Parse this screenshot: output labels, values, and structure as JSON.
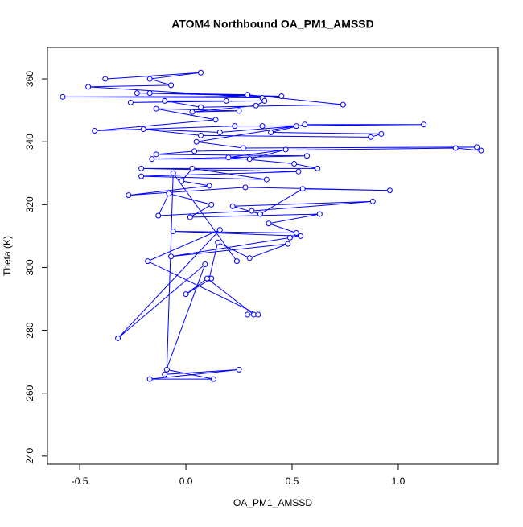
{
  "chart_data": {
    "type": "line",
    "markers": true,
    "title": "ATOM4 Northbound OA_PM1_AMSSD",
    "x_label": "OA_PM1_AMSSD",
    "y_label": "Theta (K)",
    "color": "#0000ff",
    "x": [
      -0.38,
      0.07,
      -0.17,
      -0.07,
      -0.46,
      0.36,
      -0.58,
      0.45,
      -0.23,
      -0.17,
      0.29,
      0.74,
      0.07,
      -0.1,
      0.19,
      -0.26,
      0.37,
      0.33,
      0.03,
      0.25,
      -0.14,
      0.14,
      -0.43,
      0.23,
      0.36,
      1.12,
      0.56,
      0.4,
      0.92,
      0.87,
      0.07,
      -0.2,
      0.16,
      0.52,
      0.05,
      0.27,
      1.37,
      1.39,
      1.27,
      0.04,
      -0.14,
      0.57,
      -0.16,
      0.3,
      0.47,
      0.2,
      0.51,
      0.62,
      -0.21,
      0.53,
      -0.21,
      0.38,
      0.03,
      -0.02,
      0.11,
      -0.27,
      0.28,
      0.96,
      0.55,
      0.35,
      0.22,
      0.88,
      0.31,
      -0.13,
      -0.08,
      0.12,
      0.02,
      0.63,
      0.39,
      0.52,
      -0.06,
      0.54,
      0.49,
      -0.07,
      0.48,
      0.3,
      0.15,
      0.11,
      0.12,
      0.0,
      0.1,
      0.32,
      0.29,
      0.34,
      -0.18,
      0.16,
      -0.32,
      0.09,
      -0.1,
      0.25,
      -0.17,
      0.13,
      -0.09,
      -0.06,
      0.24
    ],
    "y": [
      360,
      362,
      360,
      358,
      357.5,
      354,
      354.3,
      354.5,
      355.5,
      355.5,
      355,
      351.8,
      351,
      353,
      353,
      352.5,
      353,
      351.5,
      349.5,
      349.8,
      350.5,
      347,
      343.5,
      345,
      345,
      345.5,
      345.5,
      343,
      342.5,
      341.5,
      342,
      344,
      343,
      345,
      340,
      338,
      338.3,
      337.2,
      338,
      337,
      336,
      335.5,
      334.5,
      334.5,
      337.5,
      335,
      333,
      331.5,
      331.5,
      330.5,
      329,
      328,
      331.5,
      327.5,
      326,
      323,
      325.5,
      324.5,
      325,
      317,
      319.5,
      321,
      318,
      316.5,
      323.5,
      320,
      316,
      317,
      314,
      311,
      311.5,
      310,
      309.5,
      303.5,
      307.5,
      303,
      308,
      296.5,
      296.5,
      291.5,
      296.5,
      285,
      285,
      285,
      302,
      312,
      277.5,
      301,
      266,
      267.5,
      264.5,
      264.5,
      267.5,
      330,
      302
    ],
    "xlim": [
      -0.652,
      1.47
    ],
    "ylim": [
      237.4,
      370
    ],
    "xticks": [
      -0.5,
      {
        "value": 0,
        "label": "0.0"
      },
      0.5,
      {
        "value": 1,
        "label": "1.0"
      }
    ],
    "yticks": [
      240,
      260,
      280,
      300,
      320,
      340,
      360
    ]
  }
}
